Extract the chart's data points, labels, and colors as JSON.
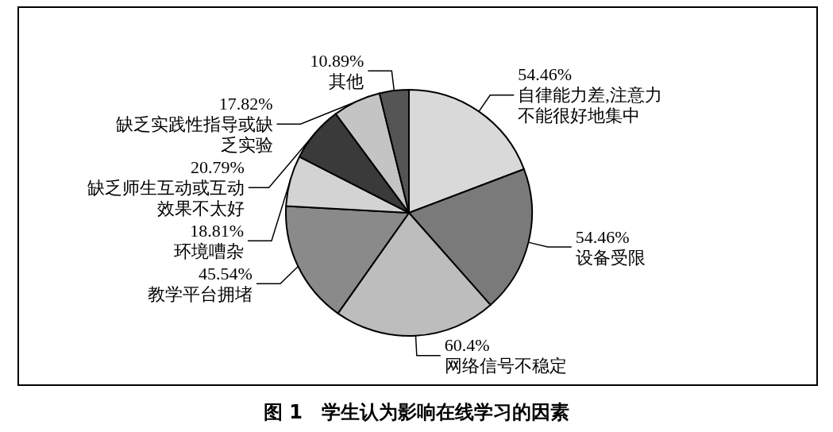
{
  "chart_data": {
    "type": "pie",
    "title": "图 1　学生认为影响在线学习的因素",
    "categories": [
      "自律能力差,注意力不能很好地集中",
      "设备受限",
      "网络信号不稳定",
      "教学平台拥堵",
      "环境嘈杂",
      "缺乏师生互动或互动效果不太好",
      "缺乏实践性指导或缺乏实验",
      "其他"
    ],
    "values": [
      54.46,
      54.46,
      60.4,
      45.54,
      18.81,
      20.79,
      17.82,
      10.89
    ],
    "value_labels": [
      "54.46%",
      "54.46%",
      "60.4%",
      "45.54%",
      "18.81%",
      "20.79%",
      "17.82%",
      "10.89%"
    ],
    "colors": [
      "#d9d9d9",
      "#7a7a7a",
      "#bdbdbd",
      "#8a8a8a",
      "#d3d3d3",
      "#3a3a3a",
      "#c4c4c4",
      "#555555"
    ],
    "legend": false
  }
}
